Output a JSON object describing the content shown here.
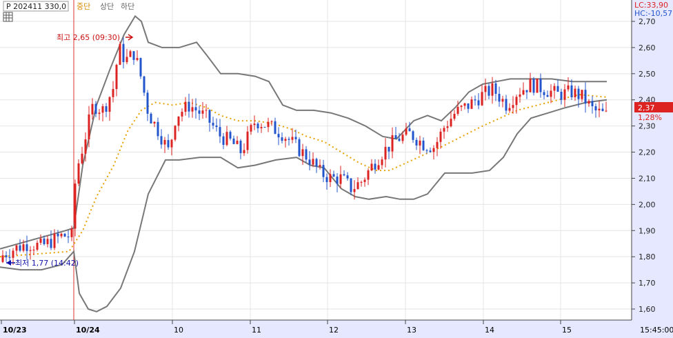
{
  "header": {
    "series_label": "P 202411 330,0",
    "bands": [
      {
        "label": "중단",
        "color": "#d68a00"
      },
      {
        "label": "상단",
        "color": "#666666"
      },
      {
        "label": "하단",
        "color": "#666666"
      }
    ]
  },
  "limits": {
    "lc": "LC:33,90",
    "hc": "HC:-10,57"
  },
  "current": {
    "price": "2,37",
    "change": "1,28%"
  },
  "annotations": {
    "high": "최고 2,65 (09:30)",
    "low": "최저 1,77 (14:42)"
  },
  "colors": {
    "up": "#dd2222",
    "down": "#2255cc",
    "band": "#777777",
    "mid": "#e8a000",
    "axis_bg": "#e6e8ff",
    "grid": "#e4e4e4",
    "price_box": "#dd2222",
    "low_text": "#1111aa",
    "high_text": "#cc1111"
  },
  "chart_data": {
    "type": "candlestick",
    "title": "",
    "y_ticks": [
      "1,60",
      "1,70",
      "1,80",
      "1,90",
      "2,00",
      "2,10",
      "2,20",
      "2,30",
      "2,40",
      "2,50",
      "2,60",
      "2,70"
    ],
    "y_range": [
      1.55,
      2.75
    ],
    "x_labels": [
      "10/23",
      "10/24",
      "10",
      "11",
      "12",
      "13",
      "14",
      "15",
      "15:45:00"
    ],
    "session_high": 2.65,
    "session_low": 1.77,
    "last": 2.37,
    "indicators": [
      "Bollinger upper",
      "Bollinger middle",
      "Bollinger lower"
    ]
  }
}
